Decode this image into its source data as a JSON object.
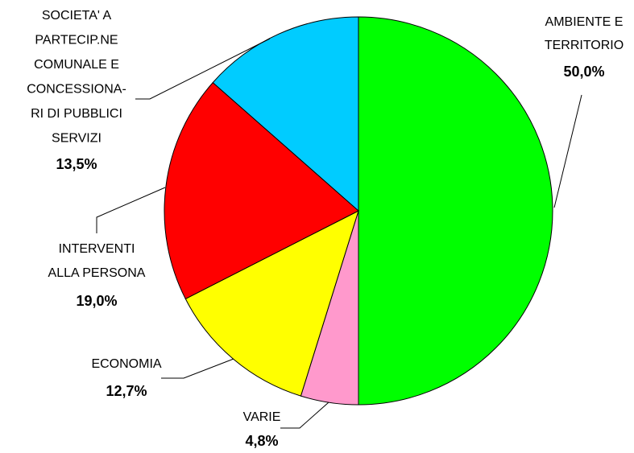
{
  "chart_data": {
    "type": "pie",
    "categories": [
      "AMBIENTE E\nTERRITORIO",
      "VARIE",
      "ECONOMIA",
      "INTERVENTI\nALLA PERSONA",
      "SOCIETA' A\nPARTECIP.NE\nCOMUNALE E\nCONCESSIONA-\nRI DI PUBBLICI\nSERVIZI"
    ],
    "values": [
      50.0,
      4.8,
      12.7,
      19.0,
      13.5
    ],
    "value_labels": [
      "50,0%",
      "4,8%",
      "12,7%",
      "19,0%",
      "13,5%"
    ],
    "colors": [
      "#00ff00",
      "#ff99cc",
      "#ffff00",
      "#ff0000",
      "#00ccff"
    ],
    "label_colors": [
      "#339966",
      "#ff00ff",
      "#ff9900",
      "#ff0000",
      "#0000ff"
    ]
  }
}
